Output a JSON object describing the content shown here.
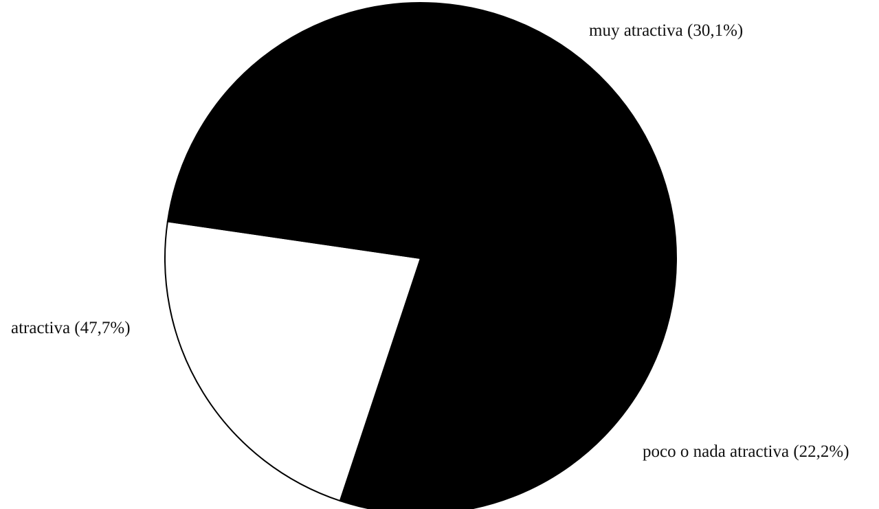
{
  "chart_data": {
    "type": "pie",
    "slices": [
      {
        "label": "muy atractiva (30,1%)",
        "value": 30.1,
        "color": "#000000"
      },
      {
        "label": "poco o nada atractiva (22,2%)",
        "value": 22.2,
        "color": "#ffffff"
      },
      {
        "label": "atractiva (47,7%)",
        "value": 47.7,
        "color": "#000000"
      }
    ],
    "start_angle_deg": 0,
    "direction": "clockwise"
  }
}
